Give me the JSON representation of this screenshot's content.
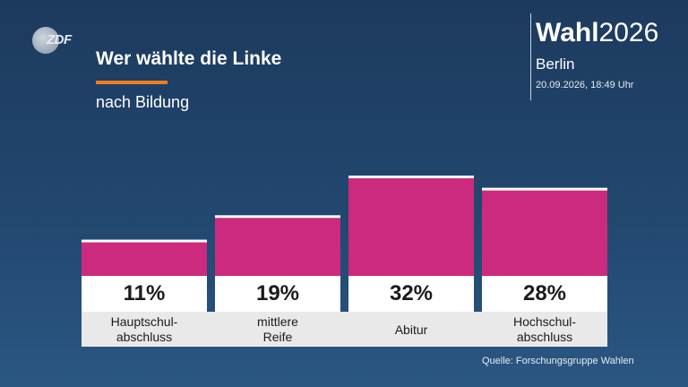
{
  "logo_text": "ZDF",
  "title": "Wer wählte die Linke",
  "subtitle": "nach Bildung",
  "brand": {
    "bold": "Wahl",
    "year": "2026"
  },
  "region": "Berlin",
  "timestamp": "20.09.2026, 18:49 Uhr",
  "source": "Quelle: Forschungsgruppe Wahlen",
  "colors": {
    "bar": "#cc2a7e",
    "accent": "#f07d1e",
    "background": "#22476f"
  },
  "chart_data": {
    "type": "bar",
    "title": "Wer wählte die Linke",
    "subtitle": "nach Bildung",
    "categories": [
      "Hauptschul-\nabschluss",
      "mittlere\nReife",
      "Abitur",
      "Hochschul-\nabschluss"
    ],
    "values": [
      11,
      19,
      32,
      28
    ],
    "value_labels": [
      "11%",
      "19%",
      "32%",
      "28%"
    ],
    "unit": "%",
    "ylim": [
      0,
      32
    ],
    "grid": false,
    "legend": "none"
  }
}
